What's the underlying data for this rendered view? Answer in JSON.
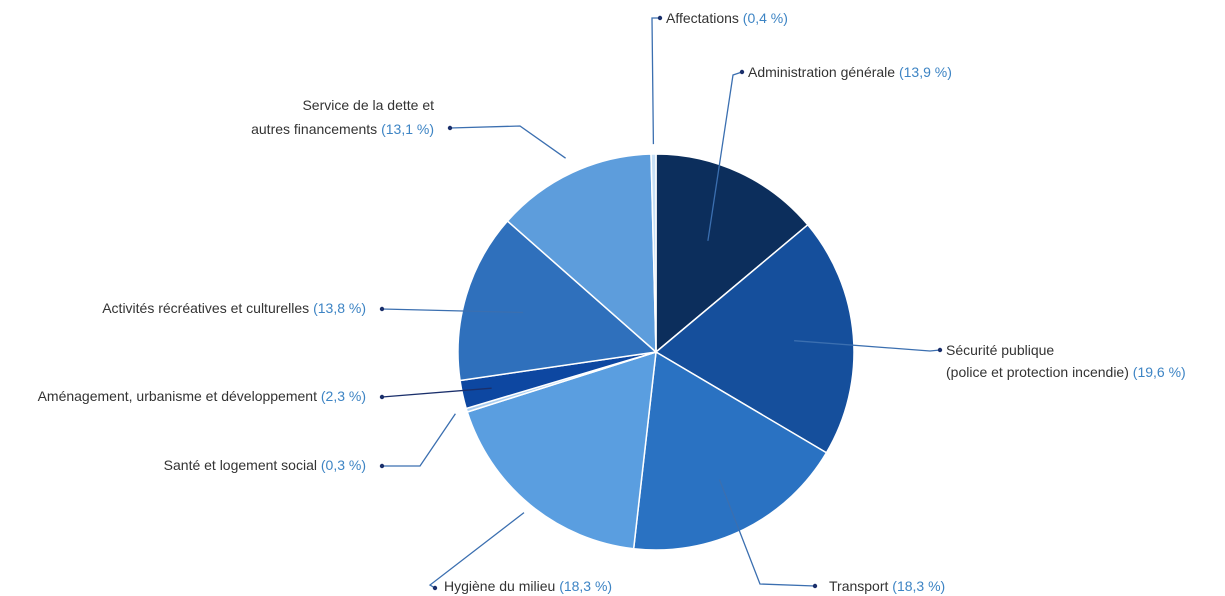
{
  "chart_data": {
    "type": "pie",
    "title": "",
    "slices": [
      {
        "label": "Administration générale",
        "percent_text": "(13,9 %)",
        "value": 13.9,
        "color": "#0c2e5c"
      },
      {
        "label": "Sécurité publique",
        "label_line2": "(police et protection incendie)",
        "percent_text": "(19,6 %)",
        "value": 19.6,
        "color": "#154f9c"
      },
      {
        "label": "Transport",
        "percent_text": "(18,3 %)",
        "value": 18.3,
        "color": "#2a72c2"
      },
      {
        "label": "Hygiène du milieu",
        "percent_text": "(18,3 %)",
        "value": 18.3,
        "color": "#5a9ee0"
      },
      {
        "label": "Santé et logement social",
        "percent_text": "(0,3 %)",
        "value": 0.3,
        "color": "#a9cdef"
      },
      {
        "label": "Aménagement, urbanisme et développement",
        "percent_text": "(2,3 %)",
        "value": 2.3,
        "color": "#0d47a1"
      },
      {
        "label": "Activités récréatives et culturelles",
        "percent_text": "(13,8 %)",
        "value": 13.8,
        "color": "#2f70bc"
      },
      {
        "label": "Service de la dette et",
        "label_line2": "autres financements",
        "percent_text": "(13,1 %)",
        "value": 13.1,
        "color": "#5d9ddc"
      },
      {
        "label": "Affectations",
        "percent_text": "(0,4 %)",
        "value": 0.4,
        "color": "#c8e0f6"
      }
    ]
  }
}
